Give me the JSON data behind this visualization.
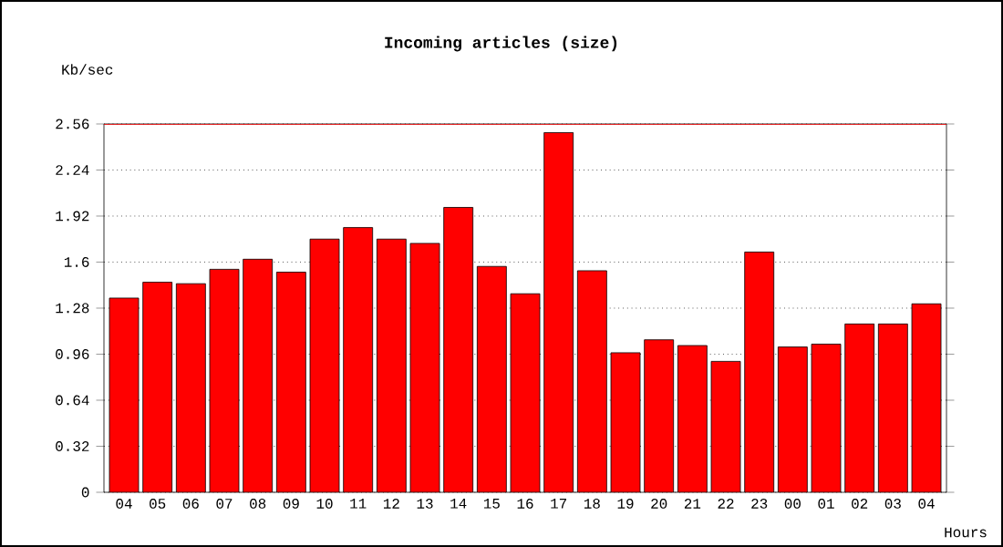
{
  "chart_data": {
    "type": "bar",
    "title": "Incoming articles (size)",
    "xlabel": "Hours",
    "ylabel": "Kb/sec",
    "categories": [
      "04",
      "05",
      "06",
      "07",
      "08",
      "09",
      "10",
      "11",
      "12",
      "13",
      "14",
      "15",
      "16",
      "17",
      "18",
      "19",
      "20",
      "21",
      "22",
      "23",
      "00",
      "01",
      "02",
      "03",
      "04"
    ],
    "values": [
      1.35,
      1.46,
      1.45,
      1.55,
      1.62,
      1.53,
      1.76,
      1.84,
      1.76,
      1.73,
      1.98,
      1.57,
      1.38,
      2.5,
      1.54,
      0.97,
      1.06,
      1.02,
      0.91,
      1.67,
      1.01,
      1.03,
      1.17,
      1.17,
      1.31
    ],
    "color": "#ff0000",
    "ylim": [
      0,
      2.56
    ],
    "yticks": [
      0,
      0.32,
      0.64,
      0.96,
      1.28,
      1.6,
      1.92,
      2.24,
      2.56
    ],
    "grid": "y",
    "line_style": "dotted",
    "ref_lines": [
      {
        "axis": "y",
        "value": 2.56,
        "color": "#ff0000"
      }
    ]
  }
}
